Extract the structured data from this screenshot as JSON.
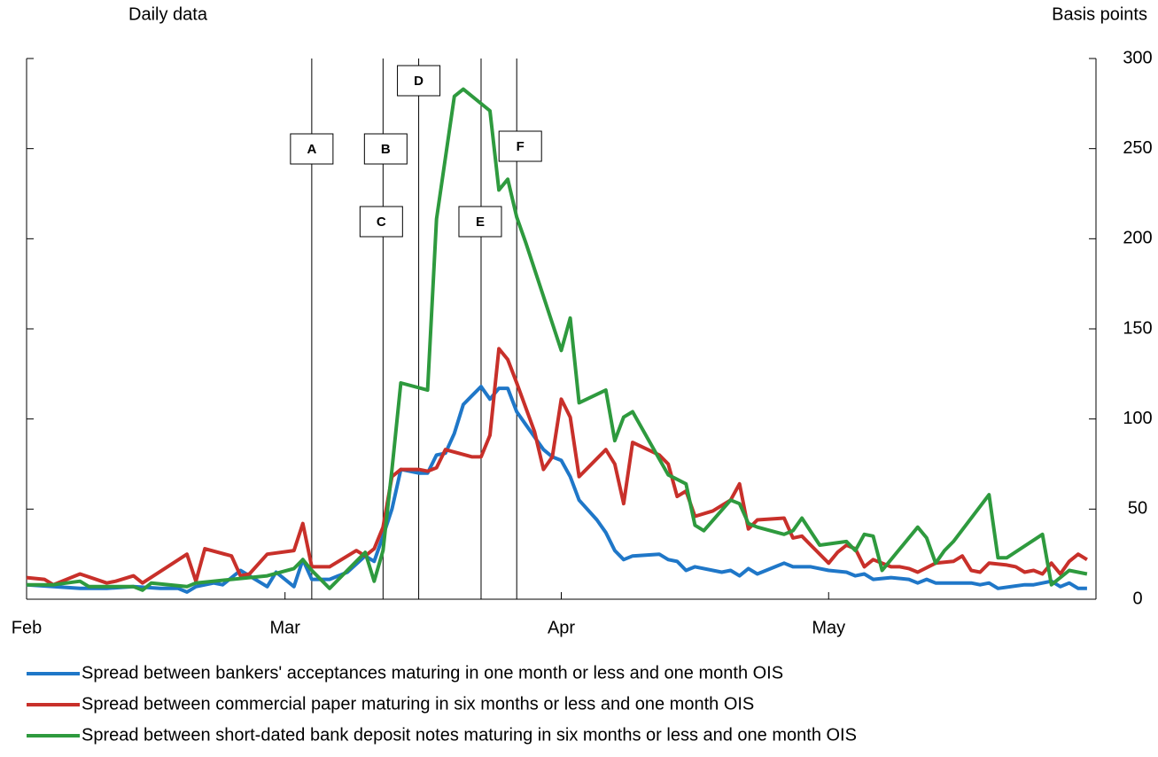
{
  "chart_data": {
    "type": "line",
    "subtitle_left": "Daily data",
    "y_axis_label": "Basis points",
    "xlim": [
      0,
      120
    ],
    "xticks": [
      {
        "value": 0,
        "label": "Feb"
      },
      {
        "value": 29,
        "label": "Mar"
      },
      {
        "value": 60,
        "label": "Apr"
      },
      {
        "value": 90,
        "label": "May"
      }
    ],
    "ylim": [
      0,
      300
    ],
    "yticks": [
      0,
      50,
      100,
      150,
      200,
      250,
      300
    ],
    "annotations": [
      {
        "label": "A",
        "x": 32
      },
      {
        "label": "B",
        "x": 40
      },
      {
        "label": "C",
        "x": 40
      },
      {
        "label": "D",
        "x": 44
      },
      {
        "label": "E",
        "x": 51
      },
      {
        "label": "F",
        "x": 55
      }
    ],
    "series": [
      {
        "name": "Spread between bankers' acceptances maturing in one month or less and one month OIS",
        "color": "#1f77c8",
        "x": [
          0,
          3,
          6,
          9,
          12,
          15,
          17,
          18,
          19,
          21,
          22,
          24,
          26,
          27,
          28,
          30,
          31,
          32,
          34,
          36,
          38,
          39,
          40,
          41,
          42,
          44,
          45,
          46,
          47,
          48,
          49,
          50,
          51,
          52,
          53,
          54,
          55,
          56,
          57,
          58,
          59,
          60,
          61,
          62,
          64,
          65,
          66,
          67,
          68,
          71,
          72,
          73,
          74,
          75,
          78,
          79,
          80,
          81,
          82,
          84,
          85,
          86,
          88,
          90,
          92,
          93,
          94,
          95,
          97,
          99,
          100,
          101,
          102,
          106,
          107,
          108,
          109,
          112,
          113,
          115,
          116,
          117,
          118,
          119
        ],
        "values": [
          8,
          7,
          6,
          6,
          7,
          6,
          6,
          4,
          7,
          9,
          8,
          16,
          10,
          7,
          15,
          7,
          22,
          11,
          11,
          15,
          24,
          21,
          35,
          50,
          72,
          70,
          70,
          80,
          81,
          92,
          108,
          113,
          118,
          111,
          117,
          117,
          104,
          97,
          90,
          83,
          79,
          77,
          68,
          55,
          44,
          37,
          27,
          22,
          24,
          25,
          22,
          21,
          16,
          18,
          15,
          16,
          13,
          17,
          14,
          18,
          20,
          18,
          18,
          16,
          15,
          13,
          14,
          11,
          12,
          11,
          9,
          11,
          9,
          9,
          8,
          9,
          6,
          8,
          8,
          10,
          7,
          9,
          6,
          6
        ]
      },
      {
        "name": "Spread between commercial paper maturing in six months or less and one month OIS",
        "color": "#c8302a",
        "x": [
          0,
          2,
          3,
          6,
          9,
          10,
          12,
          13,
          18,
          19,
          20,
          23,
          24,
          25,
          27,
          30,
          31,
          32,
          34,
          37,
          38,
          39,
          40,
          41,
          42,
          44,
          45,
          46,
          47,
          50,
          51,
          52,
          53,
          54,
          55,
          57,
          58,
          59,
          60,
          61,
          62,
          65,
          66,
          67,
          68,
          71,
          72,
          73,
          74,
          75,
          77,
          79,
          80,
          81,
          82,
          85,
          86,
          87,
          88,
          90,
          91,
          92,
          93,
          94,
          95,
          97,
          98,
          99,
          100,
          102,
          104,
          105,
          106,
          107,
          108,
          110,
          111,
          112,
          113,
          114,
          115,
          116,
          117,
          118,
          119
        ],
        "values": [
          12,
          11,
          8,
          14,
          9,
          10,
          13,
          9,
          25,
          10,
          28,
          24,
          13,
          14,
          25,
          27,
          42,
          18,
          18,
          27,
          24,
          28,
          40,
          68,
          72,
          72,
          71,
          73,
          83,
          79,
          79,
          91,
          139,
          133,
          120,
          93,
          72,
          79,
          111,
          101,
          68,
          83,
          75,
          53,
          87,
          80,
          75,
          57,
          60,
          46,
          49,
          55,
          64,
          39,
          44,
          45,
          34,
          35,
          30,
          20,
          26,
          30,
          28,
          18,
          22,
          18,
          18,
          17,
          15,
          20,
          21,
          24,
          16,
          15,
          20,
          19,
          18,
          15,
          16,
          14,
          20,
          14,
          21,
          25,
          22
        ]
      },
      {
        "name": "Spread between short-dated bank deposit notes maturing in six months or less and one month OIS",
        "color": "#2e9a3e",
        "x": [
          0,
          3,
          6,
          7,
          10,
          12,
          13,
          14,
          18,
          19,
          25,
          27,
          30,
          31,
          32,
          34,
          38,
          39,
          40,
          41,
          42,
          45,
          46,
          48,
          49,
          52,
          53,
          54,
          55,
          56,
          60,
          61,
          62,
          65,
          66,
          67,
          68,
          72,
          74,
          75,
          76,
          79,
          80,
          81,
          82,
          85,
          86,
          87,
          89,
          92,
          93,
          94,
          95,
          96,
          100,
          101,
          102,
          103,
          104,
          108,
          109,
          110,
          114,
          115,
          117,
          119
        ],
        "values": [
          8,
          8,
          10,
          7,
          7,
          7,
          5,
          9,
          7,
          9,
          12,
          13,
          17,
          22,
          16,
          6,
          26,
          10,
          27,
          72,
          120,
          116,
          211,
          279,
          283,
          271,
          227,
          233,
          212,
          198,
          138,
          156,
          109,
          116,
          88,
          101,
          104,
          69,
          64,
          41,
          38,
          55,
          53,
          42,
          40,
          36,
          38,
          45,
          30,
          32,
          27,
          36,
          35,
          16,
          40,
          34,
          20,
          27,
          32,
          58,
          23,
          23,
          36,
          8,
          16,
          14
        ]
      }
    ]
  }
}
